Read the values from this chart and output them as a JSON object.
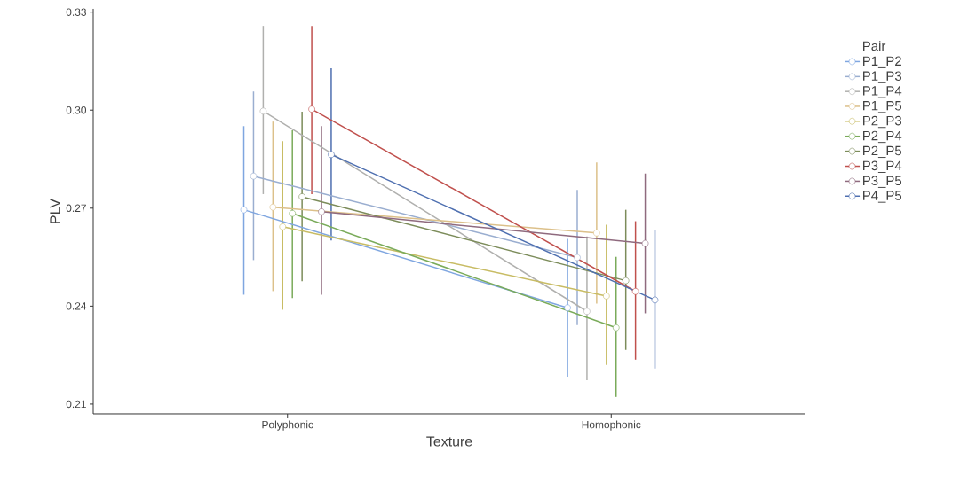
{
  "chart_data": {
    "type": "line",
    "xlabel": "Texture",
    "ylabel": "PLV",
    "legend_title": "Pair",
    "categories": [
      "Polyphonic",
      "Homophonic"
    ],
    "ylim": [
      0.207,
      0.331
    ],
    "yticks": [
      0.21,
      0.24,
      0.27,
      {
        "value": 0.3,
        "label": "0.30"
      },
      0.33
    ],
    "grid": false,
    "legend": "right",
    "marker": "circle",
    "line_style": "solid",
    "series": [
      {
        "name": "P1_P2",
        "color": "#7fa6e0",
        "values": [
          0.2695,
          0.2395
        ],
        "errors": [
          [
            0.2435,
            0.2951
          ],
          [
            0.2184,
            0.2606
          ]
        ]
      },
      {
        "name": "P1_P3",
        "color": "#9aaed0",
        "values": [
          0.2798,
          0.2549
        ],
        "errors": [
          [
            0.2541,
            0.3057
          ],
          [
            0.2342,
            0.2756
          ]
        ]
      },
      {
        "name": "P1_P4",
        "color": "#b0b0ae",
        "values": [
          0.2997,
          0.2384
        ],
        "errors": [
          [
            0.2743,
            0.3258
          ],
          [
            0.2173,
            0.2613
          ]
        ]
      },
      {
        "name": "P1_P5",
        "color": "#dcc08a",
        "values": [
          0.2703,
          0.2624
        ],
        "errors": [
          [
            0.2446,
            0.2965
          ],
          [
            0.2408,
            0.284
          ]
        ]
      },
      {
        "name": "P2_P3",
        "color": "#c8bc64",
        "values": [
          0.2643,
          0.2431
        ],
        "errors": [
          [
            0.2389,
            0.2905
          ],
          [
            0.222,
            0.2649
          ]
        ]
      },
      {
        "name": "P2_P4",
        "color": "#7aab5a",
        "values": [
          0.2684,
          0.2334
        ],
        "errors": [
          [
            0.2425,
            0.2938
          ],
          [
            0.2122,
            0.2551
          ]
        ]
      },
      {
        "name": "P2_P5",
        "color": "#7c8c5a",
        "values": [
          0.2735,
          0.2478
        ],
        "errors": [
          [
            0.2476,
            0.2995
          ],
          [
            0.2266,
            0.2695
          ]
        ]
      },
      {
        "name": "P3_P4",
        "color": "#c0504d",
        "values": [
          0.3003,
          0.2445
        ],
        "errors": [
          [
            0.2743,
            0.3258
          ],
          [
            0.2236,
            0.266
          ]
        ]
      },
      {
        "name": "P3_P5",
        "color": "#8f6a7e",
        "values": [
          0.2689,
          0.2592
        ],
        "errors": [
          [
            0.2435,
            0.2951
          ],
          [
            0.2378,
            0.2806
          ]
        ]
      },
      {
        "name": "P4_P5",
        "color": "#4e6fb0",
        "values": [
          0.2864,
          0.2419
        ],
        "errors": [
          [
            0.2601,
            0.3128
          ],
          [
            0.2209,
            0.2632
          ]
        ]
      }
    ]
  }
}
